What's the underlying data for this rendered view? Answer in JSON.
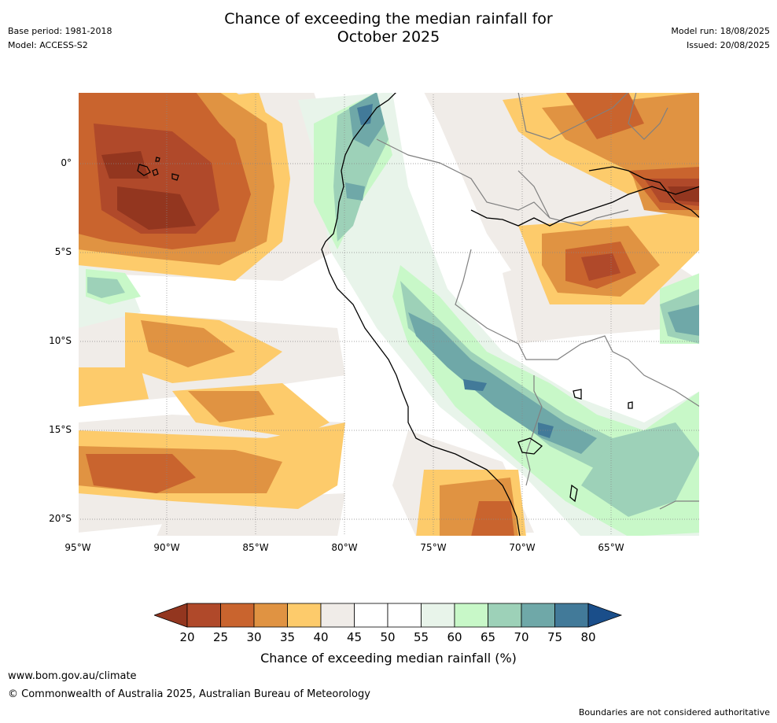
{
  "header": {
    "base_period": "Base period: 1981-2018",
    "model": "Model: ACCESS-S2",
    "title_line1": "Chance of exceeding the median rainfall for",
    "title_line2": "October 2025",
    "model_run": "Model run: 18/08/2025",
    "issued": "Issued: 20/08/2025"
  },
  "map": {
    "lat_labels": [
      "0°",
      "5°S",
      "10°S",
      "15°S",
      "20°S"
    ],
    "lon_labels": [
      "95°W",
      "90°W",
      "85°W",
      "80°W",
      "75°W",
      "70°W",
      "65°W"
    ],
    "extent": {
      "lon_min": -95,
      "lon_max": -60,
      "lat_min": -21,
      "lat_max": 4
    },
    "background_color": "#ffffff",
    "coastline_color": "#000000",
    "border_color": "#808080"
  },
  "colorbar": {
    "ticks": [
      "20",
      "25",
      "30",
      "35",
      "40",
      "45",
      "50",
      "55",
      "60",
      "65",
      "70",
      "75",
      "80"
    ],
    "colors": [
      "#93361f",
      "#b0492a",
      "#c9642e",
      "#e09342",
      "#fdcb6b",
      "#f0ece8",
      "#ffffff",
      "#ffffff",
      "#e8f4ea",
      "#c8f8c8",
      "#9dd1b8",
      "#6fa8a8",
      "#427a99",
      "#1a4e8a"
    ],
    "label": "Chance of exceeding median rainfall (%)"
  },
  "footer": {
    "url": "www.bom.gov.au/climate",
    "copyright": "© Commonwealth of Australia 2025, Australian Bureau of Meteorology",
    "disclaimer": "Boundaries are not considered authoritative"
  }
}
